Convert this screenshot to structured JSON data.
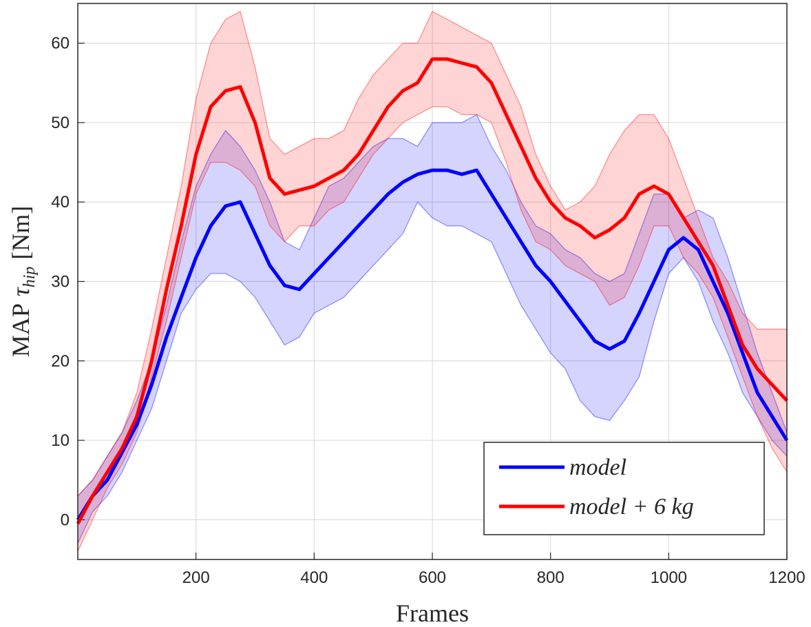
{
  "chart_data": {
    "type": "line",
    "xlabel": "Frames",
    "ylabel": {
      "text": "MAP",
      "symbol": "τ",
      "subscript": "hip",
      "unit": "[Nm]"
    },
    "x": [
      0,
      25,
      50,
      75,
      100,
      125,
      150,
      175,
      200,
      225,
      250,
      275,
      300,
      325,
      350,
      375,
      400,
      425,
      450,
      475,
      500,
      525,
      550,
      575,
      600,
      625,
      650,
      675,
      700,
      725,
      750,
      775,
      800,
      825,
      850,
      875,
      900,
      925,
      950,
      975,
      1000,
      1025,
      1050,
      1075,
      1100,
      1125,
      1150,
      1175,
      1200
    ],
    "series": [
      {
        "name": "model",
        "color": "#0000ff",
        "values": [
          0,
          3,
          5,
          8.5,
          12,
          17,
          23,
          28,
          33,
          37,
          39.5,
          40,
          36,
          32,
          29.5,
          29,
          31,
          33,
          35,
          37,
          39,
          41,
          42.5,
          43.5,
          44,
          44,
          43.5,
          44,
          41,
          38,
          35,
          32,
          30,
          27.5,
          25,
          22.5,
          21.5,
          22.5,
          26,
          30,
          34,
          35.5,
          34,
          30,
          26,
          21,
          16,
          13,
          10
        ],
        "upper": [
          3,
          5,
          8,
          11,
          15,
          20,
          27,
          35,
          42,
          46,
          49,
          47,
          44,
          40,
          35,
          34,
          38,
          42,
          43,
          45,
          47,
          48,
          48,
          47,
          50,
          50,
          50,
          51,
          47,
          44,
          40,
          37,
          36,
          34,
          33,
          31,
          30,
          31,
          36,
          41,
          41,
          38,
          39,
          38,
          33,
          27,
          21,
          16,
          11
        ],
        "lower": [
          -3,
          1,
          3,
          6,
          10,
          14,
          20,
          26,
          29,
          31,
          31,
          30,
          28,
          25,
          22,
          23,
          26,
          27,
          28,
          30,
          32,
          34,
          36,
          40,
          38,
          37,
          37,
          36,
          35,
          31,
          27,
          24,
          21,
          19,
          15,
          13,
          12.5,
          15,
          18,
          25,
          31,
          33,
          30,
          25,
          21,
          16,
          13,
          10,
          8
        ]
      },
      {
        "name": "model + 6 kg",
        "color": "#ff0000",
        "values": [
          -0.5,
          3,
          6,
          9,
          13,
          20,
          29,
          37,
          46,
          52,
          54,
          54.5,
          50,
          43,
          41,
          41.5,
          42,
          43,
          44,
          46,
          49,
          52,
          54,
          55,
          58,
          58,
          57.5,
          57,
          55,
          51,
          47,
          43,
          40,
          38,
          37,
          35.5,
          36.5,
          38,
          41,
          42,
          41,
          38,
          35,
          32,
          27,
          22,
          19,
          17,
          15
        ],
        "upper": [
          3,
          5,
          8,
          11,
          16,
          24,
          33,
          42,
          53,
          60,
          63,
          64,
          57,
          48,
          46,
          47,
          48,
          48,
          49,
          53,
          56,
          58,
          60,
          60,
          64,
          63,
          62,
          61,
          60,
          56,
          52,
          46,
          42,
          39,
          40,
          42,
          46,
          49,
          51,
          51,
          48,
          43,
          38,
          33,
          30,
          26,
          24,
          24,
          24
        ],
        "lower": [
          -4,
          0,
          4,
          7,
          11,
          18,
          25,
          33,
          41,
          45,
          45,
          44,
          42,
          37,
          35,
          37,
          37,
          39,
          40,
          43,
          46,
          48,
          50,
          51,
          52,
          52,
          51,
          51,
          50,
          45,
          39,
          35,
          34,
          32,
          31,
          30,
          27,
          28,
          32,
          37,
          37,
          33,
          31,
          28,
          23,
          18,
          13,
          9,
          6
        ]
      }
    ],
    "xlim": [
      0,
      1200
    ],
    "xticks": [
      200,
      400,
      600,
      800,
      1000,
      1200
    ],
    "ylim": [
      -5,
      65
    ],
    "yticks": [
      0,
      10,
      20,
      30,
      40,
      50,
      60
    ],
    "grid": true,
    "legend": "lower right"
  }
}
